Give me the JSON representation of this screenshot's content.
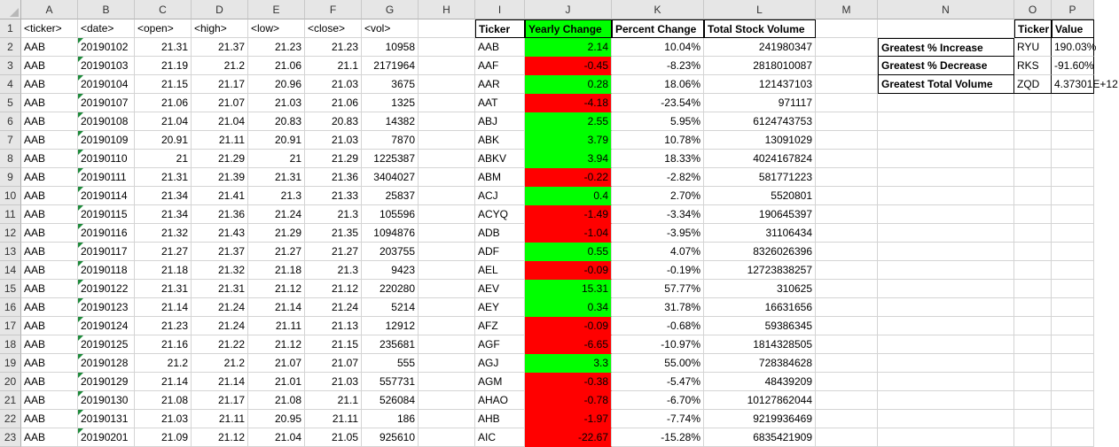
{
  "columns": [
    "A",
    "B",
    "C",
    "D",
    "E",
    "F",
    "G",
    "H",
    "I",
    "J",
    "K",
    "L",
    "M",
    "N",
    "O",
    "P"
  ],
  "rows": [
    "1",
    "2",
    "3",
    "4",
    "5",
    "6",
    "7",
    "8",
    "9",
    "10",
    "11",
    "12",
    "13",
    "14",
    "15",
    "16",
    "17",
    "18",
    "19",
    "20",
    "21",
    "22",
    "23"
  ],
  "raw_header": [
    "<ticker>",
    "<date>",
    "<open>",
    "<high>",
    "<low>",
    "<close>",
    "<vol>"
  ],
  "raw_data": [
    [
      "AAB",
      "20190102",
      "21.31",
      "21.37",
      "21.23",
      "21.23",
      "10958"
    ],
    [
      "AAB",
      "20190103",
      "21.19",
      "21.2",
      "21.06",
      "21.1",
      "2171964"
    ],
    [
      "AAB",
      "20190104",
      "21.15",
      "21.17",
      "20.96",
      "21.03",
      "3675"
    ],
    [
      "AAB",
      "20190107",
      "21.06",
      "21.07",
      "21.03",
      "21.06",
      "1325"
    ],
    [
      "AAB",
      "20190108",
      "21.04",
      "21.04",
      "20.83",
      "20.83",
      "14382"
    ],
    [
      "AAB",
      "20190109",
      "20.91",
      "21.11",
      "20.91",
      "21.03",
      "7870"
    ],
    [
      "AAB",
      "20190110",
      "21",
      "21.29",
      "21",
      "21.29",
      "1225387"
    ],
    [
      "AAB",
      "20190111",
      "21.31",
      "21.39",
      "21.31",
      "21.36",
      "3404027"
    ],
    [
      "AAB",
      "20190114",
      "21.34",
      "21.41",
      "21.3",
      "21.33",
      "25837"
    ],
    [
      "AAB",
      "20190115",
      "21.34",
      "21.36",
      "21.24",
      "21.3",
      "105596"
    ],
    [
      "AAB",
      "20190116",
      "21.32",
      "21.43",
      "21.29",
      "21.35",
      "1094876"
    ],
    [
      "AAB",
      "20190117",
      "21.27",
      "21.37",
      "21.27",
      "21.27",
      "203755"
    ],
    [
      "AAB",
      "20190118",
      "21.18",
      "21.32",
      "21.18",
      "21.3",
      "9423"
    ],
    [
      "AAB",
      "20190122",
      "21.31",
      "21.31",
      "21.12",
      "21.12",
      "220280"
    ],
    [
      "AAB",
      "20190123",
      "21.14",
      "21.24",
      "21.14",
      "21.24",
      "5214"
    ],
    [
      "AAB",
      "20190124",
      "21.23",
      "21.24",
      "21.11",
      "21.13",
      "12912"
    ],
    [
      "AAB",
      "20190125",
      "21.16",
      "21.22",
      "21.12",
      "21.15",
      "235681"
    ],
    [
      "AAB",
      "20190128",
      "21.2",
      "21.2",
      "21.07",
      "21.07",
      "555"
    ],
    [
      "AAB",
      "20190129",
      "21.14",
      "21.14",
      "21.01",
      "21.03",
      "557731"
    ],
    [
      "AAB",
      "20190130",
      "21.08",
      "21.17",
      "21.08",
      "21.1",
      "526084"
    ],
    [
      "AAB",
      "20190131",
      "21.03",
      "21.11",
      "20.95",
      "21.11",
      "186"
    ],
    [
      "AAB",
      "20190201",
      "21.09",
      "21.12",
      "21.04",
      "21.05",
      "925610"
    ]
  ],
  "summary_header": [
    "Ticker",
    "Yearly Change",
    "Percent Change",
    "Total Stock Volume"
  ],
  "summary_data": [
    [
      "AAB",
      "2.14",
      "10.04%",
      "241980347",
      "positive"
    ],
    [
      "AAF",
      "-0.45",
      "-8.23%",
      "2818010087",
      "negative"
    ],
    [
      "AAR",
      "0.28",
      "18.06%",
      "121437103",
      "positive"
    ],
    [
      "AAT",
      "-4.18",
      "-23.54%",
      "971117",
      "negative"
    ],
    [
      "ABJ",
      "2.55",
      "5.95%",
      "6124743753",
      "positive"
    ],
    [
      "ABK",
      "3.79",
      "10.78%",
      "13091029",
      "positive"
    ],
    [
      "ABKV",
      "3.94",
      "18.33%",
      "4024167824",
      "positive"
    ],
    [
      "ABM",
      "-0.22",
      "-2.82%",
      "581771223",
      "negative"
    ],
    [
      "ACJ",
      "0.4",
      "2.70%",
      "5520801",
      "positive"
    ],
    [
      "ACYQ",
      "-1.49",
      "-3.34%",
      "190645397",
      "negative"
    ],
    [
      "ADB",
      "-1.04",
      "-3.95%",
      "31106434",
      "negative"
    ],
    [
      "ADF",
      "0.55",
      "4.07%",
      "8326026396",
      "positive"
    ],
    [
      "AEL",
      "-0.09",
      "-0.19%",
      "12723838257",
      "negative"
    ],
    [
      "AEV",
      "15.31",
      "57.77%",
      "310625",
      "positive"
    ],
    [
      "AEY",
      "0.34",
      "31.78%",
      "16631656",
      "positive"
    ],
    [
      "AFZ",
      "-0.09",
      "-0.68%",
      "59386345",
      "negative"
    ],
    [
      "AGF",
      "-6.65",
      "-10.97%",
      "1814328505",
      "negative"
    ],
    [
      "AGJ",
      "3.3",
      "55.00%",
      "728384628",
      "positive"
    ],
    [
      "AGM",
      "-0.38",
      "-5.47%",
      "48439209",
      "negative"
    ],
    [
      "AHAO",
      "-0.78",
      "-6.70%",
      "10127862044",
      "negative"
    ],
    [
      "AHB",
      "-1.97",
      "-7.74%",
      "9219936469",
      "negative"
    ],
    [
      "AIC",
      "-22.67",
      "-15.28%",
      "6835421909",
      "negative"
    ]
  ],
  "greatest_header": [
    "Ticker",
    "Value"
  ],
  "greatest_data": [
    [
      "Greatest % Increase",
      "RYU",
      "190.03%"
    ],
    [
      "Greatest % Decrease",
      "RKS",
      "-91.60%"
    ],
    [
      "Greatest Total Volume",
      "ZQD",
      "4.37301E+12"
    ]
  ],
  "colors": {
    "positive": "#00ff00",
    "negative": "#ff0000",
    "header_bg": "#e6e6e6",
    "triangle": "#1d8a3a"
  }
}
